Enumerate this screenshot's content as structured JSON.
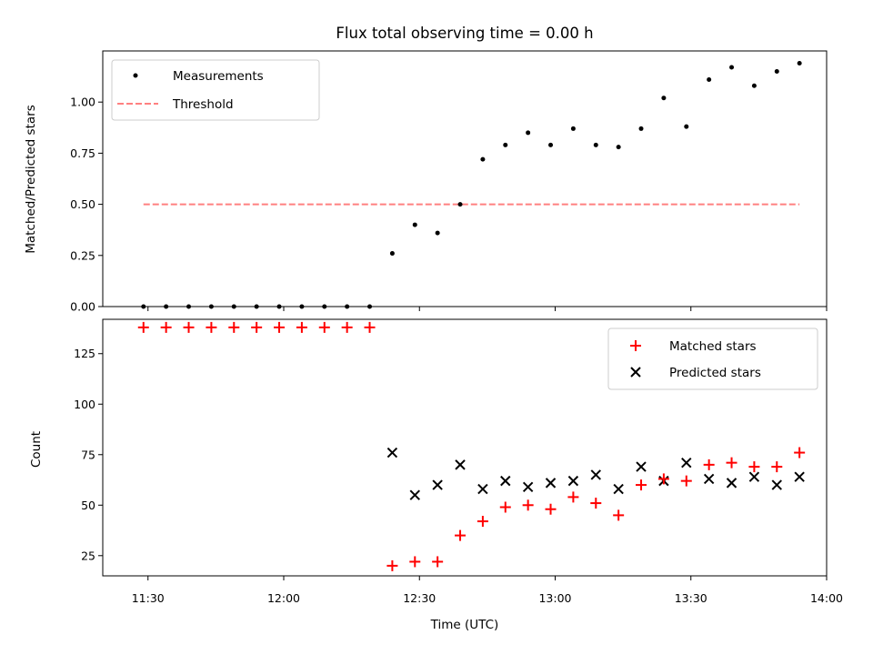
{
  "chart_data": [
    {
      "type": "scatter",
      "title": "Flux total observing time = 0.00 h",
      "ylabel": "Matched/Predicted stars",
      "xlabel": "",
      "xlim": [
        "11:20",
        "14:00"
      ],
      "ylim": [
        0,
        1.25
      ],
      "yticks": [
        0.0,
        0.25,
        0.5,
        0.75,
        1.0
      ],
      "ytick_labels": [
        "0.00",
        "0.25",
        "0.50",
        "0.75",
        "1.00"
      ],
      "legend_position": "top-left",
      "legend": [
        "Measurements",
        "Threshold"
      ],
      "colors": {
        "measurements": "#000000",
        "threshold": "#ff8080"
      },
      "series": [
        {
          "name": "Measurements",
          "x": [
            "11:29",
            "11:34",
            "11:39",
            "11:44",
            "11:49",
            "11:54",
            "11:59",
            "12:04",
            "12:09",
            "12:14",
            "12:19",
            "12:24",
            "12:29",
            "12:34",
            "12:39",
            "12:44",
            "12:49",
            "12:54",
            "12:59",
            "13:04",
            "13:09",
            "13:14",
            "13:19",
            "13:24",
            "13:29",
            "13:34",
            "13:39",
            "13:44",
            "13:49",
            "13:54"
          ],
          "y": [
            0,
            0,
            0,
            0,
            0,
            0,
            0,
            0,
            0,
            0,
            0,
            0.26,
            0.4,
            0.36,
            0.5,
            0.72,
            0.79,
            0.85,
            0.79,
            0.87,
            0.79,
            0.78,
            0.87,
            1.02,
            0.88,
            1.11,
            1.17,
            1.08,
            1.15,
            1.19
          ]
        },
        {
          "name": "Threshold",
          "style": "dashed",
          "x": [
            "11:29",
            "13:54"
          ],
          "y": [
            0.5,
            0.5
          ]
        }
      ]
    },
    {
      "type": "scatter",
      "title": "",
      "xlabel": "Time (UTC)",
      "ylabel": "Count",
      "xlim": [
        "11:20",
        "14:00"
      ],
      "xticks": [
        "11:30",
        "12:00",
        "12:30",
        "13:00",
        "13:30",
        "14:00"
      ],
      "ylim": [
        15,
        142
      ],
      "yticks": [
        25,
        50,
        75,
        100,
        125
      ],
      "legend_position": "top-right",
      "legend": [
        "Matched stars",
        "Predicted stars"
      ],
      "colors": {
        "matched": "#ff0000",
        "predicted": "#000000"
      },
      "series": [
        {
          "name": "Matched stars",
          "marker": "plus",
          "x": [
            "11:29",
            "11:34",
            "11:39",
            "11:44",
            "11:49",
            "11:54",
            "11:59",
            "12:04",
            "12:09",
            "12:14",
            "12:19",
            "12:24",
            "12:29",
            "12:34",
            "12:39",
            "12:44",
            "12:49",
            "12:54",
            "12:59",
            "13:04",
            "13:09",
            "13:14",
            "13:19",
            "13:24",
            "13:29",
            "13:34",
            "13:39",
            "13:44",
            "13:49",
            "13:54"
          ],
          "y": [
            138,
            138,
            138,
            138,
            138,
            138,
            138,
            138,
            138,
            138,
            138,
            20,
            22,
            22,
            35,
            42,
            49,
            50,
            48,
            54,
            51,
            45,
            60,
            63,
            62,
            70,
            71,
            69,
            69,
            76
          ]
        },
        {
          "name": "Predicted stars",
          "marker": "x",
          "x": [
            "12:24",
            "12:29",
            "12:34",
            "12:39",
            "12:44",
            "12:49",
            "12:54",
            "12:59",
            "13:04",
            "13:09",
            "13:14",
            "13:19",
            "13:24",
            "13:29",
            "13:34",
            "13:39",
            "13:44",
            "13:49",
            "13:54"
          ],
          "y": [
            76,
            55,
            60,
            70,
            58,
            62,
            59,
            61,
            62,
            65,
            58,
            69,
            62,
            71,
            63,
            61,
            64,
            60,
            64
          ]
        }
      ]
    }
  ]
}
